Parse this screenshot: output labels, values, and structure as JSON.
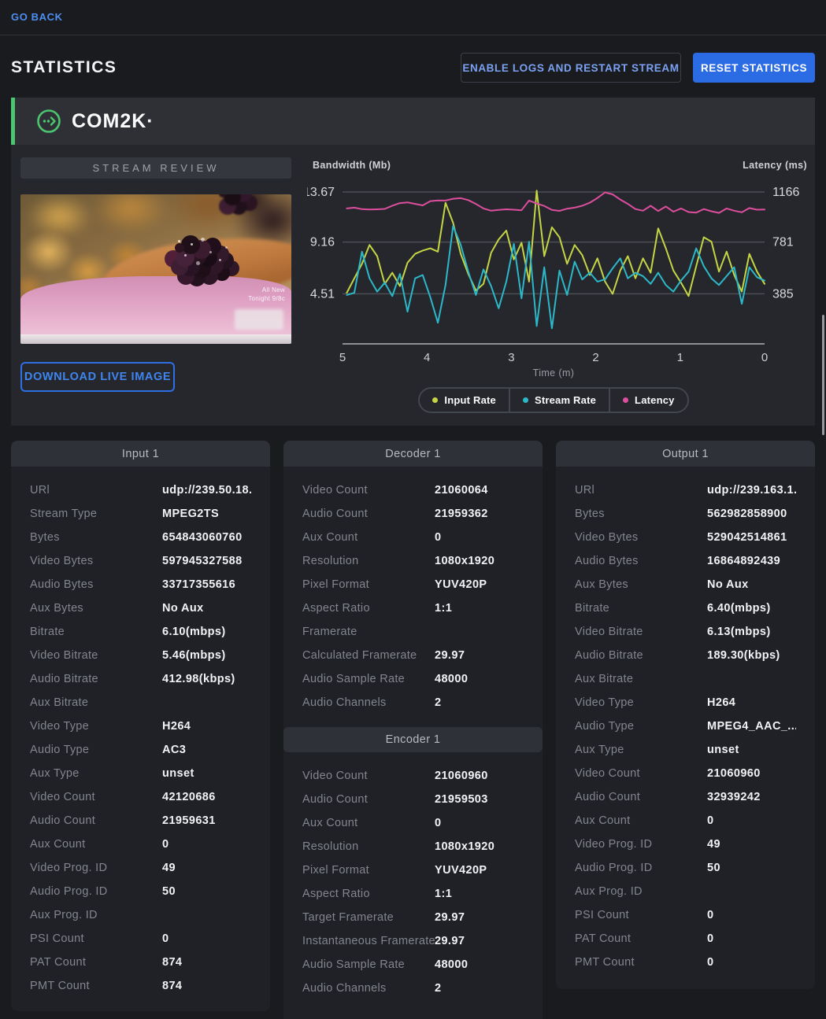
{
  "topbar": {
    "go_back": "GO BACK"
  },
  "header": {
    "title": "STATISTICS",
    "enable_logs_button": "ENABLE LOGS AND RESTART STREAM",
    "reset_button": "RESET STATISTICS"
  },
  "brand": {
    "name": "COM2K·"
  },
  "stream_review": {
    "title": "STREAM REVIEW",
    "download_button": "DOWNLOAD LIVE IMAGE",
    "overlay_line1": "All New",
    "overlay_line2": "Tonight 9/8c"
  },
  "colors": {
    "accent_green": "#4cc56f",
    "accent_blue": "#2b6ce5",
    "link_blue": "#4e8ff2",
    "grid_line": "#4b4e55",
    "axis_line": "#8c8f94"
  },
  "chart_data": {
    "type": "line",
    "axis_left_label": "Bandwidth (Mb)",
    "axis_right_label": "Latency (ms)",
    "xlabel": "Time (m)",
    "x_ticks": [
      5,
      4,
      3,
      2,
      1,
      0
    ],
    "x_range_minutes": [
      5,
      0
    ],
    "bandwidth_ticks": [
      13.67,
      9.16,
      4.51
    ],
    "latency_ticks": [
      1166,
      781,
      385
    ],
    "grid": true,
    "legend_position": "bottom",
    "x_minutes": [
      4.95,
      4.86,
      4.77,
      4.68,
      4.59,
      4.5,
      4.41,
      4.32,
      4.23,
      4.14,
      4.05,
      3.96,
      3.87,
      3.78,
      3.69,
      3.6,
      3.51,
      3.42,
      3.33,
      3.24,
      3.15,
      3.06,
      2.97,
      2.88,
      2.79,
      2.7,
      2.61,
      2.52,
      2.43,
      2.34,
      2.25,
      2.16,
      2.07,
      1.98,
      1.89,
      1.8,
      1.71,
      1.62,
      1.53,
      1.44,
      1.35,
      1.26,
      1.17,
      1.08,
      0.99,
      0.9,
      0.81,
      0.72,
      0.63,
      0.54,
      0.45,
      0.36,
      0.27,
      0.18,
      0.09,
      0.0
    ],
    "series": [
      {
        "name": "Input Rate",
        "axis": "bandwidth",
        "unit": "Mb",
        "color": "#c5d545",
        "values": [
          4.6,
          5.9,
          7.2,
          8.9,
          7.9,
          5.4,
          6.4,
          5.2,
          7.3,
          8.1,
          8.4,
          8.6,
          8.3,
          12.7,
          10.9,
          8.1,
          6.3,
          4.8,
          5.4,
          8.2,
          9.4,
          10.2,
          7.6,
          9.1,
          5.6,
          13.8,
          7.9,
          10.5,
          9.6,
          7.2,
          8.9,
          8.0,
          6.2,
          7.7,
          5.6,
          4.5,
          6.6,
          7.9,
          5.9,
          7.7,
          6.4,
          10.4,
          8.6,
          6.6,
          5.5,
          4.3,
          7.0,
          9.6,
          9.2,
          6.5,
          8.3,
          6.2,
          4.7,
          8.1,
          6.5,
          5.4
        ]
      },
      {
        "name": "Stream Rate",
        "axis": "bandwidth",
        "unit": "Mb",
        "color": "#2cb8c9",
        "values": [
          4.4,
          4.6,
          8.3,
          5.9,
          4.7,
          5.5,
          4.3,
          6.3,
          2.9,
          5.9,
          6.2,
          4.2,
          1.9,
          5.3,
          10.6,
          8.9,
          6.5,
          4.4,
          6.7,
          5.2,
          3.2,
          5.6,
          9.0,
          4.1,
          9.2,
          1.6,
          6.9,
          1.4,
          6.6,
          4.4,
          7.4,
          5.8,
          6.4,
          5.6,
          5.8,
          6.8,
          7.7,
          5.9,
          6.4,
          6.1,
          5.4,
          6.4,
          5.3,
          4.7,
          5.7,
          6.5,
          8.6,
          7.0,
          5.9,
          5.3,
          6.1,
          6.9,
          3.6,
          6.9,
          6.0,
          5.7
        ]
      },
      {
        "name": "Latency",
        "axis": "latency",
        "unit": "ms",
        "color": "#dd4f9e",
        "values": [
          1040,
          1046,
          1034,
          1031,
          1033,
          1036,
          1061,
          1081,
          1086,
          1075,
          1063,
          1096,
          1101,
          1100,
          1114,
          1119,
          1104,
          1074,
          1040,
          1022,
          1029,
          1033,
          1030,
          1026,
          1101,
          1077,
          1059,
          1028,
          1021,
          1038,
          1046,
          1060,
          1084,
          1120,
          1163,
          1148,
          1108,
          1075,
          1035,
          1022,
          1060,
          1020,
          1055,
          1015,
          1040,
          1012,
          1008,
          1035,
          1018,
          1005,
          1040,
          1022,
          1010,
          1043,
          1030,
          1031
        ]
      }
    ]
  },
  "panels": {
    "input": {
      "title": "Input 1",
      "rows": [
        {
          "label": "URl",
          "value": "udp://239.50.18...."
        },
        {
          "label": "Stream Type",
          "value": "MPEG2TS"
        },
        {
          "label": "Bytes",
          "value": "654843060760"
        },
        {
          "label": "Video Bytes",
          "value": "597945327588"
        },
        {
          "label": "Audio Bytes",
          "value": "33717355616"
        },
        {
          "label": "Aux Bytes",
          "value": "No Aux"
        },
        {
          "label": "Bitrate",
          "value": "6.10(mbps)"
        },
        {
          "label": "Video Bitrate",
          "value": "5.46(mbps)"
        },
        {
          "label": "Audio Bitrate",
          "value": "412.98(kbps)"
        },
        {
          "label": "Aux Bitrate",
          "value": ""
        },
        {
          "label": "Video Type",
          "value": "H264"
        },
        {
          "label": "Audio Type",
          "value": "AC3"
        },
        {
          "label": "Aux Type",
          "value": "unset"
        },
        {
          "label": "Video Count",
          "value": "42120686"
        },
        {
          "label": "Audio Count",
          "value": "21959631"
        },
        {
          "label": "Aux Count",
          "value": "0"
        },
        {
          "label": "Video Prog. ID",
          "value": "49"
        },
        {
          "label": "Audio Prog. ID",
          "value": "50"
        },
        {
          "label": "Aux Prog. ID",
          "value": ""
        },
        {
          "label": "PSI Count",
          "value": "0"
        },
        {
          "label": "PAT Count",
          "value": "874"
        },
        {
          "label": "PMT Count",
          "value": "874"
        }
      ]
    },
    "decoder": {
      "title": "Decoder 1",
      "rows": [
        {
          "label": "Video Count",
          "value": "21060064"
        },
        {
          "label": "Audio Count",
          "value": "21959362"
        },
        {
          "label": "Aux Count",
          "value": "0"
        },
        {
          "label": "Resolution",
          "value": "1080x1920"
        },
        {
          "label": "Pixel Format",
          "value": "YUV420P"
        },
        {
          "label": "Aspect Ratio",
          "value": "1:1"
        },
        {
          "label": "Framerate",
          "value": ""
        },
        {
          "label": "Calculated Framerate",
          "value": "29.97"
        },
        {
          "label": "Audio Sample Rate",
          "value": "48000"
        },
        {
          "label": "Audio Channels",
          "value": "2"
        }
      ]
    },
    "encoder": {
      "title": "Encoder 1",
      "rows": [
        {
          "label": "Video Count",
          "value": "21060960"
        },
        {
          "label": "Audio Count",
          "value": "21959503"
        },
        {
          "label": "Aux Count",
          "value": "0"
        },
        {
          "label": "Resolution",
          "value": "1080x1920"
        },
        {
          "label": "Pixel Format",
          "value": "YUV420P"
        },
        {
          "label": "Aspect Ratio",
          "value": "1:1"
        },
        {
          "label": "Target Framerate",
          "value": "29.97"
        },
        {
          "label": "Instantaneous Framerate",
          "value": "29.97"
        },
        {
          "label": "Audio Sample Rate",
          "value": "48000"
        },
        {
          "label": "Audio Channels",
          "value": "2"
        }
      ]
    },
    "output": {
      "title": "Output 1",
      "rows": [
        {
          "label": "URl",
          "value": "udp://239.163.1..."
        },
        {
          "label": "Bytes",
          "value": "562982858900"
        },
        {
          "label": "Video Bytes",
          "value": "529042514861"
        },
        {
          "label": "Audio Bytes",
          "value": "16864892439"
        },
        {
          "label": "Aux Bytes",
          "value": "No Aux"
        },
        {
          "label": "Bitrate",
          "value": "6.40(mbps)"
        },
        {
          "label": "Video Bitrate",
          "value": "6.13(mbps)"
        },
        {
          "label": "Audio Bitrate",
          "value": "189.30(kbps)"
        },
        {
          "label": "Aux Bitrate",
          "value": ""
        },
        {
          "label": "Video Type",
          "value": "H264"
        },
        {
          "label": "Audio Type",
          "value": "MPEG4_AAC_..."
        },
        {
          "label": "Aux Type",
          "value": "unset"
        },
        {
          "label": "Video Count",
          "value": "21060960"
        },
        {
          "label": "Audio Count",
          "value": "32939242"
        },
        {
          "label": "Aux Count",
          "value": "0"
        },
        {
          "label": "Video Prog. ID",
          "value": "49"
        },
        {
          "label": "Audio Prog. ID",
          "value": "50"
        },
        {
          "label": "Aux Prog. ID",
          "value": ""
        },
        {
          "label": "PSI Count",
          "value": "0"
        },
        {
          "label": "PAT Count",
          "value": "0"
        },
        {
          "label": "PMT Count",
          "value": "0"
        }
      ]
    }
  }
}
